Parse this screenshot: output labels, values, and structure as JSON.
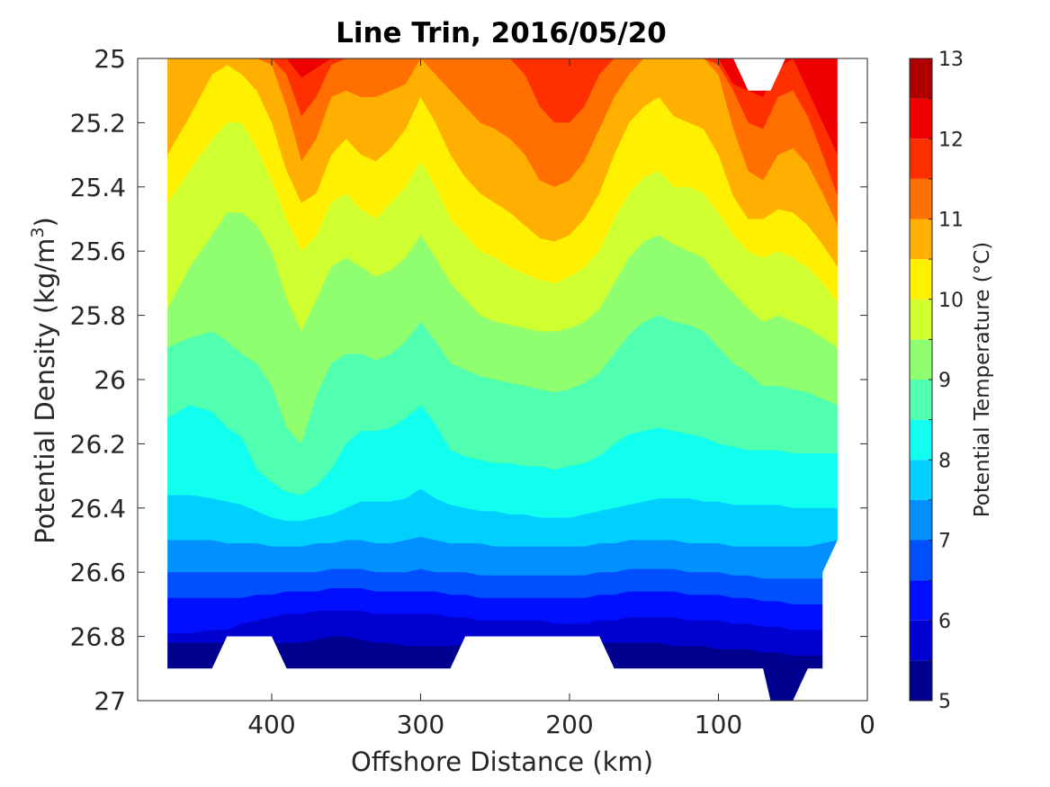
{
  "chart_data": {
    "type": "contourf",
    "title": "Line Trin, 2016/05/20",
    "xlabel": "Offshore Distance (km)",
    "ylabel_parts": [
      "Potential Density (kg/m",
      "3",
      ")"
    ],
    "xlim": [
      490,
      0
    ],
    "ylim": [
      25,
      27
    ],
    "x_reversed": true,
    "y_reversed": true,
    "xticks": [
      400,
      300,
      200,
      100,
      0
    ],
    "yticks": [
      25,
      25.2,
      25.4,
      25.6,
      25.8,
      26,
      26.2,
      26.4,
      26.6,
      26.8,
      27
    ],
    "colorbar": {
      "label": "Potential Temperature (°C)",
      "range": [
        5,
        13
      ],
      "ticks": [
        5,
        6,
        7,
        8,
        9,
        10,
        11,
        12,
        13
      ],
      "levels": [
        5,
        5.5,
        6,
        6.5,
        7,
        7.5,
        8,
        8.5,
        9,
        9.5,
        10,
        10.5,
        11,
        11.5,
        12,
        12.5,
        13
      ],
      "colors": [
        "#00008f",
        "#0000cf",
        "#0010ff",
        "#0050ff",
        "#0090ff",
        "#00d0ff",
        "#10ffef",
        "#50ffaf",
        "#90ff6f",
        "#cfff30",
        "#ffef00",
        "#ffaf00",
        "#ff7000",
        "#ff3000",
        "#ef0000",
        "#af0000"
      ]
    },
    "stations_km": [
      470,
      455,
      440,
      430,
      420,
      410,
      400,
      390,
      380,
      370,
      360,
      350,
      340,
      330,
      320,
      310,
      300,
      290,
      280,
      270,
      260,
      250,
      240,
      230,
      220,
      210,
      200,
      190,
      180,
      170,
      160,
      150,
      140,
      130,
      120,
      110,
      100,
      90,
      80,
      70,
      60,
      50,
      40,
      30,
      20
    ],
    "isotherms": [
      {
        "level": 12.5,
        "y": [
          25.0,
          25.0,
          25.0,
          25.0,
          25.0,
          25.0,
          25.0,
          25.0,
          25.0,
          25.0,
          25.0,
          25.0,
          25.0,
          25.0,
          25.0,
          25.0,
          25.0,
          25.0,
          25.0,
          25.0,
          25.0,
          25.0,
          25.0,
          25.0,
          25.0,
          25.0,
          25.0,
          25.0,
          25.0,
          25.0,
          25.0,
          25.0,
          25.0,
          25.0,
          25.0,
          25.0,
          25.0,
          25.0,
          25.0,
          25.0,
          25.0,
          25.0,
          25.03,
          25.12,
          25.2
        ]
      },
      {
        "level": 12.0,
        "y": [
          25.0,
          25.0,
          25.0,
          25.0,
          25.0,
          25.0,
          25.0,
          25.0,
          25.06,
          25.03,
          25.0,
          25.0,
          25.0,
          25.0,
          25.0,
          25.0,
          25.0,
          25.0,
          25.0,
          25.0,
          25.0,
          25.0,
          25.0,
          25.0,
          25.0,
          25.0,
          25.0,
          25.0,
          25.0,
          25.0,
          25.0,
          25.0,
          25.0,
          25.0,
          25.0,
          25.0,
          25.0,
          25.08,
          25.1,
          25.12,
          25.03,
          25.0,
          25.1,
          25.2,
          25.3
        ]
      },
      {
        "level": 11.5,
        "y": [
          25.0,
          25.0,
          25.0,
          25.0,
          25.0,
          25.0,
          25.0,
          25.05,
          25.18,
          25.12,
          25.02,
          25.0,
          25.0,
          25.0,
          25.0,
          25.0,
          25.0,
          25.0,
          25.0,
          25.0,
          25.0,
          25.0,
          25.0,
          25.05,
          25.15,
          25.2,
          25.2,
          25.15,
          25.05,
          25.0,
          25.0,
          25.0,
          25.0,
          25.0,
          25.0,
          25.0,
          25.02,
          25.1,
          25.2,
          25.22,
          25.12,
          25.1,
          25.18,
          25.3,
          25.43
        ]
      },
      {
        "level": 11.0,
        "y": [
          25.0,
          25.0,
          25.0,
          25.0,
          25.0,
          25.0,
          25.02,
          25.15,
          25.32,
          25.25,
          25.12,
          25.1,
          25.12,
          25.12,
          25.1,
          25.08,
          25.0,
          25.05,
          25.1,
          25.15,
          25.2,
          25.22,
          25.25,
          25.3,
          25.38,
          25.4,
          25.38,
          25.32,
          25.22,
          25.12,
          25.05,
          25.0,
          25.0,
          25.0,
          25.0,
          25.0,
          25.05,
          25.22,
          25.35,
          25.38,
          25.3,
          25.28,
          25.33,
          25.42,
          25.52
        ]
      },
      {
        "level": 10.5,
        "y": [
          25.3,
          25.18,
          25.05,
          25.02,
          25.05,
          25.1,
          25.2,
          25.35,
          25.45,
          25.42,
          25.3,
          25.25,
          25.3,
          25.32,
          25.28,
          25.22,
          25.12,
          25.2,
          25.3,
          25.37,
          25.42,
          25.45,
          25.48,
          25.52,
          25.56,
          25.57,
          25.55,
          25.5,
          25.42,
          25.3,
          25.2,
          25.15,
          25.12,
          25.18,
          25.2,
          25.22,
          25.3,
          25.43,
          25.5,
          25.5,
          25.47,
          25.48,
          25.52,
          25.58,
          25.65
        ]
      },
      {
        "level": 10.0,
        "y": [
          25.45,
          25.35,
          25.25,
          25.2,
          25.2,
          25.28,
          25.38,
          25.5,
          25.6,
          25.55,
          25.45,
          25.42,
          25.47,
          25.5,
          25.45,
          25.4,
          25.32,
          25.4,
          25.5,
          25.55,
          25.6,
          25.62,
          25.65,
          25.67,
          25.69,
          25.7,
          25.68,
          25.65,
          25.6,
          25.5,
          25.42,
          25.37,
          25.35,
          25.4,
          25.4,
          25.42,
          25.48,
          25.55,
          25.6,
          25.62,
          25.6,
          25.62,
          25.65,
          25.7,
          25.76
        ]
      },
      {
        "level": 9.5,
        "y": [
          25.78,
          25.65,
          25.55,
          25.48,
          25.48,
          25.52,
          25.6,
          25.75,
          25.85,
          25.75,
          25.65,
          25.62,
          25.65,
          25.68,
          25.66,
          25.62,
          25.55,
          25.62,
          25.7,
          25.75,
          25.8,
          25.82,
          25.83,
          25.84,
          25.85,
          25.85,
          25.84,
          25.82,
          25.78,
          25.7,
          25.62,
          25.57,
          25.55,
          25.58,
          25.6,
          25.62,
          25.68,
          25.73,
          25.78,
          25.82,
          25.8,
          25.82,
          25.84,
          25.87,
          25.9
        ]
      },
      {
        "level": 9.0,
        "y": [
          25.9,
          25.87,
          25.85,
          25.88,
          25.92,
          25.95,
          26.02,
          26.15,
          26.2,
          26.05,
          25.95,
          25.92,
          25.92,
          25.94,
          25.92,
          25.88,
          25.82,
          25.88,
          25.95,
          25.97,
          25.99,
          26.0,
          26.01,
          26.02,
          26.03,
          26.04,
          26.03,
          26.01,
          25.98,
          25.92,
          25.86,
          25.82,
          25.8,
          25.82,
          25.83,
          25.85,
          25.9,
          25.95,
          25.98,
          26.02,
          26.02,
          26.03,
          26.04,
          26.06,
          26.08
        ]
      },
      {
        "level": 8.5,
        "y": [
          26.12,
          26.08,
          26.1,
          26.15,
          26.18,
          26.28,
          26.32,
          26.35,
          26.36,
          26.33,
          26.28,
          26.2,
          26.16,
          26.16,
          26.15,
          26.12,
          26.08,
          26.14,
          26.22,
          26.24,
          26.25,
          26.26,
          26.26,
          26.27,
          26.27,
          26.28,
          26.27,
          26.26,
          26.24,
          26.2,
          26.17,
          26.16,
          26.15,
          26.16,
          26.17,
          26.18,
          26.2,
          26.21,
          26.22,
          26.22,
          26.22,
          26.23,
          26.23,
          26.23,
          26.23
        ]
      },
      {
        "level": 8.0,
        "y": [
          26.36,
          26.36,
          26.37,
          26.38,
          26.39,
          26.41,
          26.43,
          26.44,
          26.44,
          26.43,
          26.42,
          26.4,
          26.38,
          26.38,
          26.38,
          26.37,
          26.34,
          26.37,
          26.39,
          26.4,
          26.41,
          26.41,
          26.42,
          26.42,
          26.43,
          26.43,
          26.43,
          26.42,
          26.41,
          26.4,
          26.39,
          26.38,
          26.37,
          26.37,
          26.37,
          26.38,
          26.38,
          26.39,
          26.39,
          26.39,
          26.39,
          26.4,
          26.4,
          26.4,
          26.4
        ]
      },
      {
        "level": 7.5,
        "y": [
          26.5,
          26.5,
          26.5,
          26.51,
          26.51,
          26.51,
          26.52,
          26.52,
          26.52,
          26.51,
          26.51,
          26.5,
          26.5,
          26.51,
          26.51,
          26.5,
          26.49,
          26.5,
          26.51,
          26.51,
          26.51,
          26.52,
          26.52,
          26.52,
          26.52,
          26.52,
          26.52,
          26.52,
          26.51,
          26.51,
          26.5,
          26.5,
          26.5,
          26.5,
          26.51,
          26.51,
          26.51,
          26.52,
          26.52,
          26.52,
          26.52,
          26.52,
          26.52,
          26.51,
          26.5
        ]
      },
      {
        "level": 7.0,
        "y": [
          26.6,
          26.6,
          26.6,
          26.6,
          26.6,
          26.6,
          26.6,
          26.6,
          26.6,
          26.6,
          26.59,
          26.59,
          26.59,
          26.6,
          26.6,
          26.6,
          26.59,
          26.6,
          26.6,
          26.6,
          26.61,
          26.61,
          26.61,
          26.61,
          26.61,
          26.61,
          26.61,
          26.61,
          26.6,
          26.6,
          26.59,
          26.59,
          26.59,
          26.59,
          26.6,
          26.6,
          26.6,
          26.61,
          26.61,
          26.62,
          26.62,
          26.62,
          26.62,
          26.62,
          26.6
        ]
      },
      {
        "level": 6.5,
        "y": [
          26.68,
          26.68,
          26.68,
          26.68,
          26.68,
          26.67,
          26.67,
          26.66,
          26.66,
          26.66,
          26.65,
          26.65,
          26.65,
          26.66,
          26.66,
          26.66,
          26.66,
          26.66,
          26.67,
          26.67,
          26.68,
          26.68,
          26.68,
          26.68,
          26.68,
          26.68,
          26.68,
          26.68,
          26.67,
          26.67,
          26.66,
          26.66,
          26.66,
          26.66,
          26.67,
          26.67,
          26.67,
          26.68,
          26.68,
          26.69,
          26.69,
          26.7,
          26.7,
          26.7,
          26.7
        ]
      },
      {
        "level": 6.0,
        "y": [
          26.79,
          26.79,
          26.78,
          26.78,
          26.76,
          26.75,
          26.74,
          26.73,
          26.73,
          26.72,
          26.72,
          26.72,
          26.72,
          26.73,
          26.73,
          26.73,
          26.73,
          26.73,
          26.74,
          26.74,
          26.75,
          26.75,
          26.75,
          26.75,
          26.75,
          26.76,
          26.76,
          26.76,
          26.75,
          26.75,
          26.74,
          26.74,
          26.74,
          26.74,
          26.75,
          26.75,
          26.75,
          26.76,
          26.76,
          26.77,
          26.77,
          26.78,
          26.78,
          26.78,
          26.78
        ]
      },
      {
        "level": 5.5,
        "y": [
          26.82,
          26.82,
          26.82,
          26.82,
          26.82,
          26.82,
          26.82,
          26.82,
          26.82,
          26.81,
          26.8,
          26.8,
          26.81,
          26.82,
          26.82,
          26.83,
          26.83,
          26.83,
          26.83,
          26.82,
          26.82,
          26.82,
          26.82,
          26.82,
          26.82,
          26.82,
          26.82,
          26.82,
          26.82,
          26.82,
          26.82,
          26.82,
          26.82,
          26.83,
          26.83,
          26.83,
          26.84,
          26.84,
          26.84,
          26.85,
          26.85,
          26.86,
          26.86,
          26.86,
          26.86
        ]
      }
    ],
    "data_mask_outline": {
      "x": [
        470,
        470,
        20,
        20,
        30,
        30,
        40,
        50,
        55,
        65,
        70,
        80,
        90,
        170,
        180,
        190,
        270,
        280,
        290,
        390,
        400,
        410,
        430,
        440,
        470
      ],
      "y": [
        25,
        25,
        25,
        26.5,
        26.6,
        26.9,
        26.9,
        27,
        27,
        27,
        26.9,
        26.9,
        26.9,
        26.9,
        26.8,
        26.8,
        26.8,
        26.9,
        26.9,
        26.9,
        26.8,
        26.8,
        26.8,
        26.9,
        26.9
      ]
    },
    "white_gaps": [
      {
        "x": [
          440,
          430,
          410,
          400,
          390,
          440
        ],
        "y": [
          26.9,
          26.8,
          26.8,
          26.8,
          26.9,
          26.9
        ]
      },
      {
        "x": [
          280,
          270,
          180,
          170,
          280
        ],
        "y": [
          26.9,
          26.8,
          26.8,
          26.9,
          26.9
        ]
      },
      {
        "x": [
          30,
          30,
          20,
          20
        ],
        "y": [
          26.9,
          26.6,
          26.5,
          27.0
        ]
      }
    ]
  }
}
